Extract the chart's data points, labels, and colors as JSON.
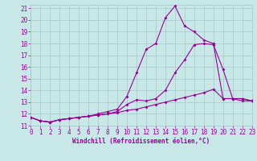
{
  "xlabel": "Windchill (Refroidissement éolien,°C)",
  "xlim": [
    0,
    23
  ],
  "ylim": [
    11,
    21.3
  ],
  "yticks": [
    11,
    12,
    13,
    14,
    15,
    16,
    17,
    18,
    19,
    20,
    21
  ],
  "xticks": [
    0,
    1,
    2,
    3,
    4,
    5,
    6,
    7,
    8,
    9,
    10,
    11,
    12,
    13,
    14,
    15,
    16,
    17,
    18,
    19,
    20,
    21,
    22,
    23
  ],
  "background_color": "#c8e8e8",
  "grid_color": "#a8c8c8",
  "line_color": "#990099",
  "line1_y": [
    11.7,
    11.4,
    11.3,
    11.5,
    11.6,
    11.7,
    11.8,
    11.9,
    12.0,
    12.1,
    12.3,
    12.4,
    12.6,
    12.8,
    13.0,
    13.2,
    13.4,
    13.6,
    13.8,
    14.1,
    13.3,
    13.3,
    13.1,
    13.1
  ],
  "line2_y": [
    11.7,
    11.4,
    11.3,
    11.5,
    11.6,
    11.7,
    11.8,
    11.9,
    12.0,
    12.2,
    12.8,
    13.2,
    13.1,
    13.3,
    14.0,
    15.5,
    16.6,
    17.9,
    18.0,
    17.9,
    15.8,
    13.3,
    13.3,
    13.1
  ],
  "line3_y": [
    11.7,
    11.4,
    11.3,
    11.5,
    11.6,
    11.7,
    11.8,
    12.0,
    12.2,
    12.4,
    13.5,
    15.5,
    17.5,
    18.0,
    20.2,
    21.2,
    19.5,
    19.0,
    18.3,
    18.0,
    13.3,
    13.3,
    13.3,
    13.1
  ],
  "markersize": 2.0,
  "linewidth": 0.8,
  "tick_fontsize": 5.5,
  "xlabel_fontsize": 5.5
}
